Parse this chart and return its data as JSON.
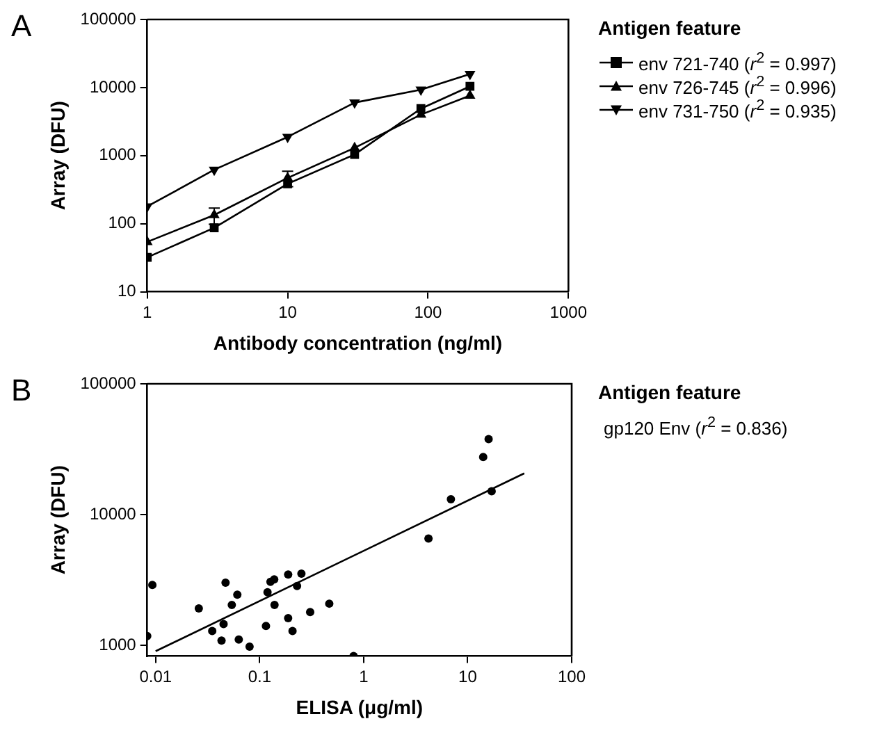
{
  "chart_data": [
    {
      "type": "line",
      "xlabel": "Antibody concentration (ng/ml)",
      "ylabel": "Array (DFU)",
      "log": "xy",
      "xlim": [
        1,
        1000
      ],
      "xticks": [
        1,
        10,
        100,
        1000
      ],
      "ylim": [
        10,
        100000
      ],
      "yticks": [
        10,
        100,
        1000,
        10000,
        100000
      ],
      "grid": false,
      "legend": "right",
      "legend_title": "Antigen feature",
      "line_style": "solid",
      "annotations": [
        "A"
      ],
      "x": [
        1,
        3,
        10,
        30,
        89,
        199
      ],
      "series": [
        {
          "name": "env 721-740 (r$^{2}$ = 0.997)",
          "color": "#000000",
          "marker": "square",
          "values": [
            32,
            87,
            385,
            1040,
            4900,
            10400
          ]
        },
        {
          "name": "env 726-745 (r$^{2}$ = 0.996)",
          "color": "#000000",
          "marker": "triangle",
          "values": [
            54,
            134,
            470,
            1300,
            4000,
            7600
          ],
          "errors": [
            null,
            36,
            120,
            null,
            null,
            null
          ]
        },
        {
          "name": "env 731-750 (r$^{2}$ = 0.935)",
          "color": "#000000",
          "marker": "triangle-down",
          "values": [
            179,
            620,
            1880,
            6000,
            9300,
            15800
          ]
        }
      ]
    },
    {
      "type": "scatter",
      "xlabel": "ELISA (μg/ml)",
      "ylabel": "Array (DFU)",
      "log": "xy",
      "xlim": [
        0.0083,
        100
      ],
      "xticks": [
        0.01,
        0.1,
        1,
        10,
        100
      ],
      "ylim": [
        830,
        100000
      ],
      "yticks": [
        1000,
        10000,
        100000
      ],
      "grid": false,
      "legend": false,
      "marker": "circle",
      "annotations": [
        "B",
        "Antigen feature",
        "gp120 Env (r$^{2}$ = 0.836)"
      ],
      "series": [
        {
          "color": "#000000",
          "x": [
            0.0083,
            0.0093,
            0.026,
            0.035,
            0.043,
            0.045,
            0.047,
            0.054,
            0.061,
            0.063,
            0.08,
            0.115,
            0.119,
            0.127,
            0.138,
            0.139,
            0.188,
            0.188,
            0.207,
            0.229,
            0.252,
            0.306,
            0.467,
            0.8,
            4.2,
            6.9,
            14.1,
            15.9,
            17.0
          ],
          "values": [
            1180,
            2900,
            1920,
            1290,
            1090,
            1460,
            3020,
            2040,
            2450,
            1110,
            980,
            1410,
            2550,
            3070,
            3200,
            2040,
            1620,
            3490,
            1290,
            2850,
            3540,
            1800,
            2090,
            830,
            6580,
            13100,
            27600,
            37800,
            15100
          ]
        },
        {
          "type": "line",
          "color": "#000000",
          "marker": "none",
          "x": [
            0.01,
            35
          ],
          "values": [
            905,
            20700
          ]
        }
      ]
    }
  ]
}
